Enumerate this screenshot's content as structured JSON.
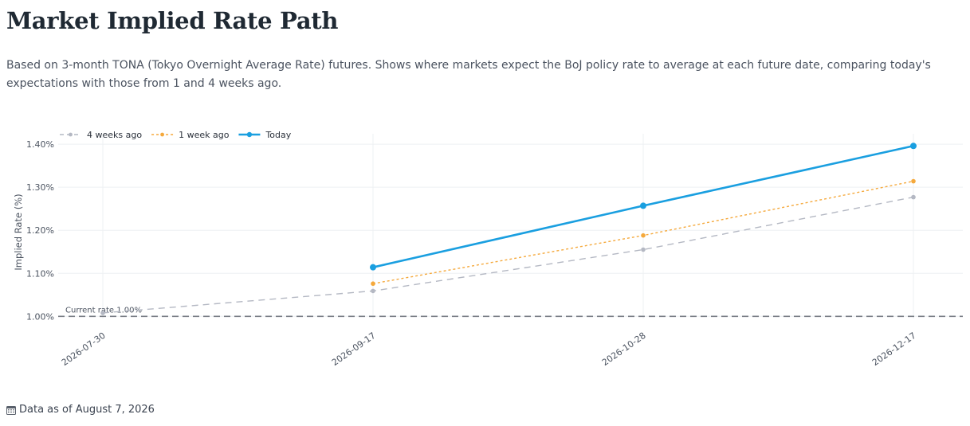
{
  "page": {
    "title": "Market Implied Rate Path",
    "subtitle": "Based on 3-month TONA (Tokyo Overnight Average Rate) futures. Shows where markets expect the BoJ policy rate to average at each future date, comparing today's expectations with those from 1 and 4 weeks ago.",
    "footer_note": "Data as of August 7, 2026",
    "footer_icon": "calendar-icon"
  },
  "chart_data": {
    "type": "line",
    "x": [
      "2026-07-30",
      "2026-09-17",
      "2026-10-28",
      "2026-12-17"
    ],
    "ylabel": "Implied Rate (%)",
    "xlabel": "",
    "ylim": [
      0.995,
      1.415
    ],
    "y_ticks": [
      1.0,
      1.1,
      1.2,
      1.3,
      1.4
    ],
    "y_tick_labels": [
      "1.00%",
      "1.10%",
      "1.20%",
      "1.30%",
      "1.40%"
    ],
    "grid": true,
    "legend_position": "top-left",
    "series": [
      {
        "name": "4 weeks ago",
        "values": [
          1.008,
          1.059,
          1.155,
          1.277
        ],
        "color": "#b4b8c3",
        "dash": "dash"
      },
      {
        "name": "1 week ago",
        "values": [
          null,
          1.076,
          1.188,
          1.314
        ],
        "color": "#f5a93c",
        "dash": "dot"
      },
      {
        "name": "Today",
        "values": [
          null,
          1.114,
          1.257,
          1.396
        ],
        "color": "#1a9fe0",
        "dash": "solid"
      }
    ],
    "reference_line": {
      "value": 1.0,
      "label": "Current rate 1.00%",
      "color": "#7a7e86"
    }
  }
}
